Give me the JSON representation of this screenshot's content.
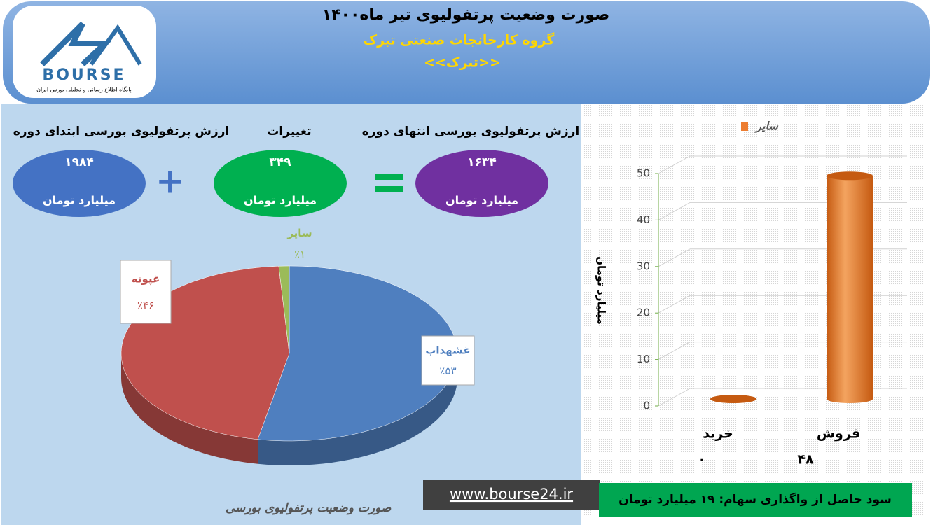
{
  "header": {
    "title": "صورت وضعیت پرتفولیوی تیر ماه۱۴۰۰",
    "subtitle": "گروه کارخانجات صنعتی تبرک",
    "symbol": "<<تبرک>>"
  },
  "logo": {
    "brand": "BOURSE",
    "tagline": "پایگاه اطلاع رسانی و تحلیلی بورس ایران"
  },
  "summary": {
    "items": [
      {
        "label": "ارزش پرتفولیوی بورسی ابتدای دوره",
        "value": "۱۹۸۴",
        "unit": "میلیارد تومان"
      },
      {
        "label": "تغییرات",
        "value": "۳۴۹",
        "unit": "میلیارد تومان"
      },
      {
        "label": "ارزش پرتفولیوی بورسی انتهای دوره",
        "value": "۱۶۳۴",
        "unit": "میلیارد تومان"
      }
    ]
  },
  "chart_data": [
    {
      "type": "pie",
      "categories": [
        "غشهداب",
        "غپونه",
        "سایر"
      ],
      "values": [
        53,
        46,
        1
      ],
      "value_labels": [
        "٪۵۳",
        "٪۴۶",
        "٪۱"
      ],
      "colors": [
        "#4f7fbf",
        "#c0504d",
        "#9bbb59"
      ]
    },
    {
      "type": "bar",
      "categories": [
        "خرید",
        "فروش"
      ],
      "series": [
        {
          "name": "سایر",
          "color": "#ed7d31",
          "values": [
            0,
            48
          ],
          "value_labels": [
            "۰",
            "۴۸"
          ]
        }
      ],
      "ylabel": "میلیارد تومان",
      "ylim": [
        0,
        50
      ],
      "yticks": [
        0,
        10,
        20,
        30,
        40,
        50
      ],
      "grid": true,
      "legend": "top"
    }
  ],
  "footer": {
    "profit": "سود حاصل از واگذاری سهام: ۱۹ میلیارد تومان",
    "website": "www.bourse24.ir",
    "caption": "صورت وضعیت پرتفولیوی بورسی"
  }
}
